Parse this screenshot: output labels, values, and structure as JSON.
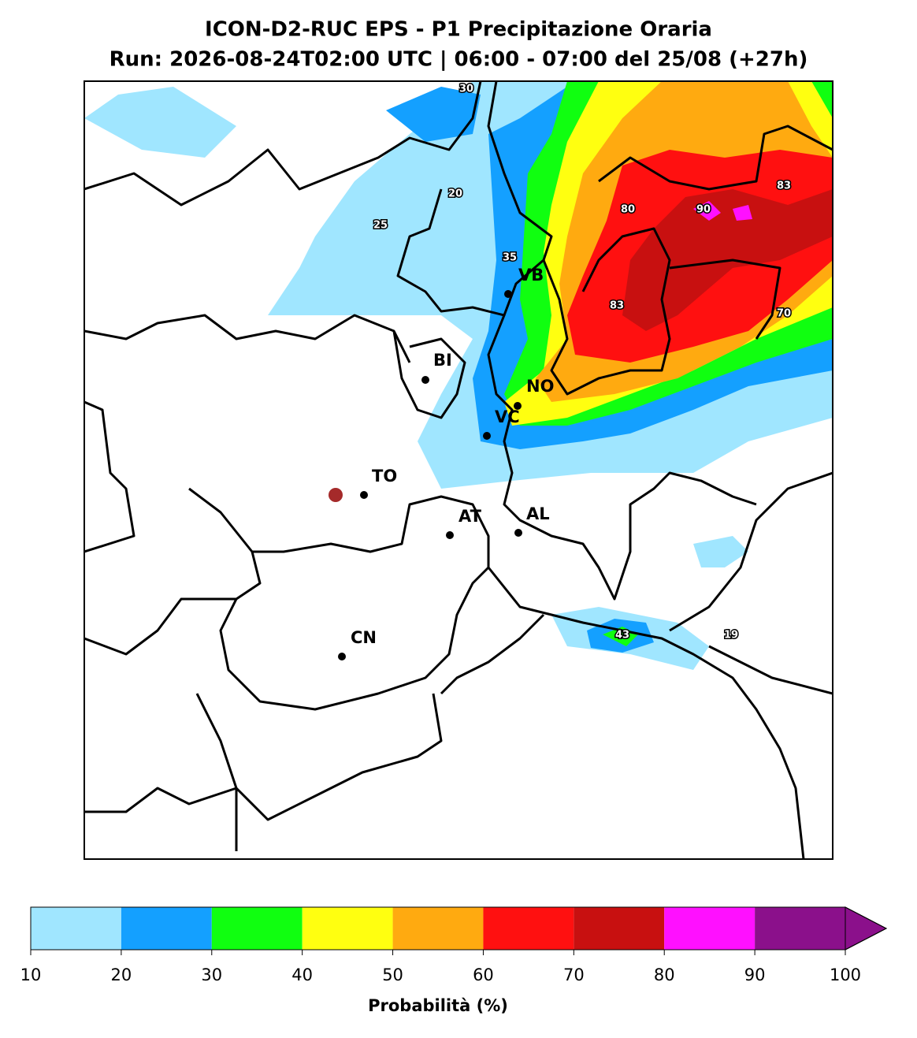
{
  "title": [
    "ICON-D2-RUC EPS - P1 Precipitazione Oraria",
    "Run: 2026-08-24T02:00 UTC | 06:00 - 07:00 del 25/08 (+27h)"
  ],
  "cities": [
    "VB",
    "BI",
    "NO",
    "VC",
    "TO",
    "AT",
    "AL",
    "CN"
  ],
  "point_labels": [
    30,
    20,
    25,
    35,
    80,
    90,
    83,
    83,
    70,
    43,
    19
  ],
  "colorbar": {
    "ticks": [
      10,
      20,
      30,
      40,
      50,
      60,
      70,
      80,
      90,
      100
    ],
    "colors": [
      "#a0e6ff",
      "#14a0ff",
      "#10ff10",
      "#ffff10",
      "#ffaa10",
      "#ff1010",
      "#c81010",
      "#ff10ff",
      "#8b108b"
    ],
    "label": "Probabilità (%)"
  }
}
